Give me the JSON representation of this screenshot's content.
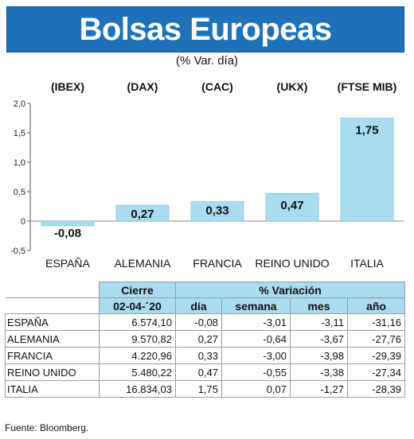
{
  "header": {
    "title": "Bolsas Europeas",
    "subtitle": "(% Var. día)"
  },
  "chart_data": {
    "type": "bar",
    "index_labels": [
      "(IBEX)",
      "(DAX)",
      "(CAC)",
      "(UKX)",
      "(FTSE MIB)"
    ],
    "categories": [
      "ESPAÑA",
      "ALEMANIA",
      "FRANCIA",
      "REINO UNIDO",
      "ITALIA"
    ],
    "values": [
      -0.08,
      0.27,
      0.33,
      0.47,
      1.75
    ],
    "value_labels": [
      "-0,08",
      "0,27",
      "0,33",
      "0,47",
      "1,75"
    ],
    "y_ticks": [
      2.0,
      1.5,
      1.0,
      0.5,
      0,
      -0.5
    ],
    "y_tick_labels": [
      "2,0",
      "1,5",
      "1,0",
      "0,5",
      "0",
      "-0,5"
    ],
    "ylim": [
      -0.5,
      2.0
    ],
    "bar_color": "#a9dcf1",
    "bar_border": "#6cb8dc"
  },
  "table": {
    "header_top": [
      "Cierre",
      "% Variación"
    ],
    "header_sub": [
      "02-04-´20",
      "día",
      "semana",
      "mes",
      "año"
    ],
    "rows": [
      [
        "ESPAÑA",
        "6.574,10",
        "-0,08",
        "-3,01",
        "-3,11",
        "-31,16"
      ],
      [
        "ALEMANIA",
        "9.570,82",
        "0,27",
        "-0,64",
        "-3,67",
        "-27,76"
      ],
      [
        "FRANCIA",
        "4.220,96",
        "0,33",
        "-3,00",
        "-3,98",
        "-29,39"
      ],
      [
        "REINO UNIDO",
        "5.480,22",
        "0,47",
        "-0,55",
        "-3,38",
        "-27,34"
      ],
      [
        "ITALIA",
        "16.834,03",
        "1,75",
        "0,07",
        "-1,27",
        "-28,39"
      ]
    ]
  },
  "footer": {
    "source": "Fuente: Bloomberg."
  }
}
